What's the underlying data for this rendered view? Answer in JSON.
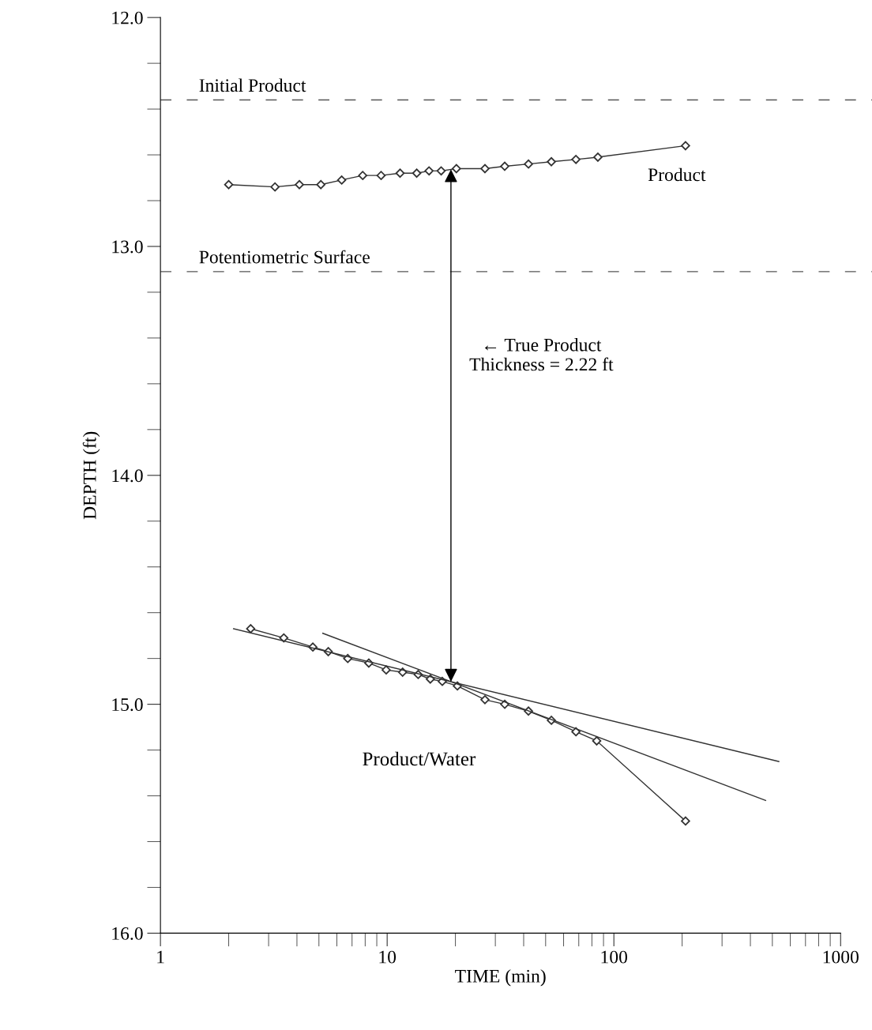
{
  "chart_data": {
    "type": "line",
    "xlabel": "TIME (min)",
    "ylabel": "DEPTH (ft)",
    "log": "x",
    "xlim": [
      1,
      1000
    ],
    "xticks": [
      1,
      10,
      100,
      1000
    ],
    "ylim": [
      16.0,
      12.0
    ],
    "yticks": [
      {
        "value": 12,
        "label": "12.0"
      },
      {
        "value": 13,
        "label": "13.0"
      },
      {
        "value": 14,
        "label": "14.0"
      },
      {
        "value": 15,
        "label": "15.0"
      },
      {
        "value": 16,
        "label": "16.0"
      }
    ],
    "grid": false,
    "marker": "diamond",
    "line_style": "solid",
    "series": [
      {
        "name": "Product",
        "color": "#333333",
        "x": [
          2.0,
          3.2,
          4.1,
          5.1,
          6.3,
          7.8,
          9.4,
          11.4,
          13.5,
          15.3,
          17.3,
          20.2,
          27,
          33,
          42,
          53,
          68,
          85,
          207
        ],
        "values": [
          12.73,
          12.74,
          12.73,
          12.73,
          12.71,
          12.69,
          12.69,
          12.68,
          12.68,
          12.67,
          12.67,
          12.66,
          12.66,
          12.65,
          12.64,
          12.63,
          12.62,
          12.61,
          12.56
        ]
      },
      {
        "name": "Product/Water",
        "color": "#333333",
        "x": [
          2.5,
          3.5,
          4.7,
          5.5,
          6.7,
          8.3,
          9.9,
          11.7,
          13.7,
          15.5,
          17.5,
          20.4,
          27,
          33,
          42,
          53,
          68,
          84,
          207
        ],
        "values": [
          14.67,
          14.71,
          14.75,
          14.77,
          14.8,
          14.82,
          14.85,
          14.86,
          14.87,
          14.89,
          14.9,
          14.92,
          14.98,
          15.0,
          15.03,
          15.07,
          15.12,
          15.16,
          15.51
        ]
      },
      {
        "type": "line",
        "marker": "none",
        "color": "#333333",
        "x": [
          2.1,
          534
        ],
        "values": [
          14.67,
          15.25
        ]
      },
      {
        "type": "line",
        "marker": "none",
        "color": "#333333",
        "x": [
          5.2,
          467
        ],
        "values": [
          14.69,
          15.42
        ]
      }
    ],
    "ref_lines": [
      {
        "axis": "y",
        "value": 12.36,
        "label": "Initial Product",
        "color": "#555555",
        "line_style": "dashed"
      },
      {
        "axis": "y",
        "value": 13.11,
        "label": "Potentiometric Surface",
        "color": "#555555",
        "line_style": "dashed"
      }
    ],
    "annotations": [
      "← True Product\nThickness = 2.22 ft"
    ]
  }
}
